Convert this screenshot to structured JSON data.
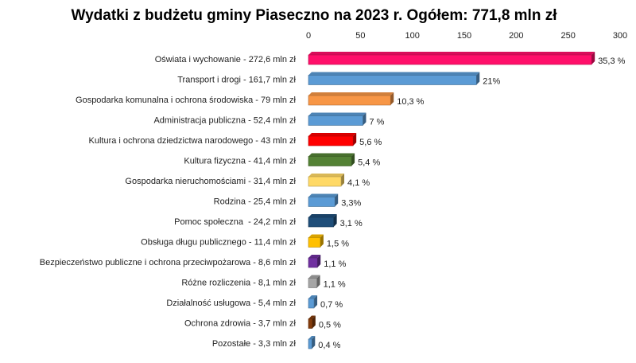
{
  "chart_data": {
    "type": "bar",
    "orientation": "horizontal",
    "title": "Wydatki z budżetu gminy Piaseczno na 2023 r. Ogółem: 771,8 mln zł",
    "categories": [
      "Oświata i wychowanie - 272,6 mln zł",
      "Transport i drogi - 161,7 mln zł",
      "Gospodarka komunalna i ochrona środowiska - 79 mln zł",
      "Administracja publiczna - 52,4 mln zł",
      "Kultura i ochrona dziedzictwa narodowego - 43 mln zł",
      "Kultura fizyczna - 41,4 mln zł",
      "Gospodarka nieruchomościami - 31,4 mln zł",
      "Rodzina - 25,4 mln zł",
      "Pomoc społeczna  - 24,2 mln zł",
      "Obsługa długu publicznego - 11,4 mln zł",
      "Bezpieczeństwo publiczne i ochrona przeciwpożarowa - 8,6 mln zł",
      "Różne rozliczenia - 8,1 mln zł",
      "Działalność usługowa - 5,4 mln zł",
      "Ochrona zdrowia - 3,7 mln zł",
      "Pozostałe - 3,3 mln zł"
    ],
    "values": [
      272.6,
      161.7,
      79,
      52.4,
      43,
      41.4,
      31.4,
      25.4,
      24.2,
      11.4,
      8.6,
      8.1,
      5.4,
      3.7,
      3.3
    ],
    "share_labels": [
      "35,3 %",
      "21%",
      "10,3 %",
      "7 %",
      "5,6 %",
      "5,4 %",
      "4,1 %",
      "3,3%",
      "3,1 %",
      "1,5 %",
      "1,1 %",
      "1,1 %",
      "0,7 %",
      "0,5 %",
      "0,4 %"
    ],
    "colors": [
      "#ff0f6a",
      "#5b9bd5",
      "#f79646",
      "#5b9bd5",
      "#ff0000",
      "#548235",
      "#ffd966",
      "#5b9bd5",
      "#1f4e79",
      "#ffc000",
      "#7030a0",
      "#a5a5a5",
      "#5b9bd5",
      "#843c0c",
      "#5b9bd5"
    ],
    "xlim": [
      0,
      300
    ],
    "xticks": [
      0,
      50,
      100,
      150,
      200,
      250,
      300
    ],
    "grid": false
  }
}
